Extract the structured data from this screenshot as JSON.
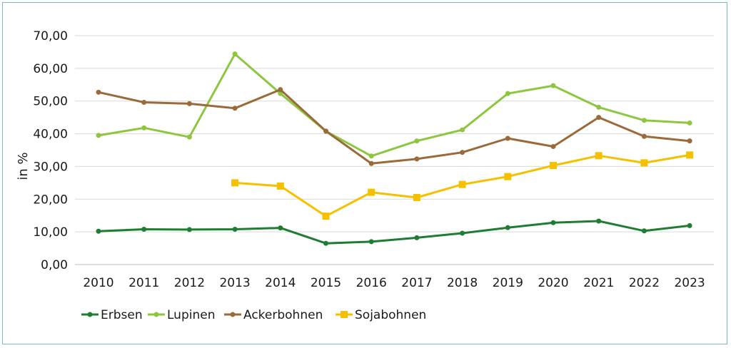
{
  "chart_data": {
    "type": "line",
    "ylabel": "in %",
    "xlabel": "",
    "ylim": [
      0,
      70
    ],
    "yticks": [
      "0,00",
      "10,00",
      "20,00",
      "30,00",
      "40,00",
      "50,00",
      "60,00",
      "70,00"
    ],
    "categories": [
      "2010",
      "2011",
      "2012",
      "2013",
      "2014",
      "2015",
      "2016",
      "2017",
      "2018",
      "2019",
      "2020",
      "2021",
      "2022",
      "2023"
    ],
    "grid": true,
    "legend_position": "bottom-left",
    "series": [
      {
        "name": "Erbsen",
        "color": "#1e7d32",
        "marker": "circle",
        "values": [
          10.2,
          10.8,
          10.7,
          10.8,
          11.2,
          6.5,
          7.0,
          8.2,
          9.6,
          11.3,
          12.8,
          13.3,
          10.3,
          11.9
        ]
      },
      {
        "name": "Lupinen",
        "color": "#8dc63f",
        "marker": "circle",
        "values": [
          39.5,
          41.8,
          39.0,
          64.4,
          52.3,
          40.8,
          33.2,
          37.8,
          41.2,
          52.3,
          54.7,
          48.1,
          44.1,
          43.3
        ]
      },
      {
        "name": "Ackerbohnen",
        "color": "#9a6a3a",
        "marker": "circle",
        "values": [
          52.7,
          49.6,
          49.2,
          47.8,
          53.5,
          40.8,
          30.9,
          32.3,
          34.3,
          38.6,
          36.1,
          45.0,
          39.2,
          37.8
        ]
      },
      {
        "name": "Sojabohnen",
        "color": "#f5c000",
        "marker": "square",
        "values": [
          null,
          null,
          null,
          25.0,
          24.0,
          14.8,
          22.1,
          20.5,
          24.5,
          26.9,
          30.3,
          33.3,
          31.1,
          33.5
        ]
      }
    ]
  }
}
